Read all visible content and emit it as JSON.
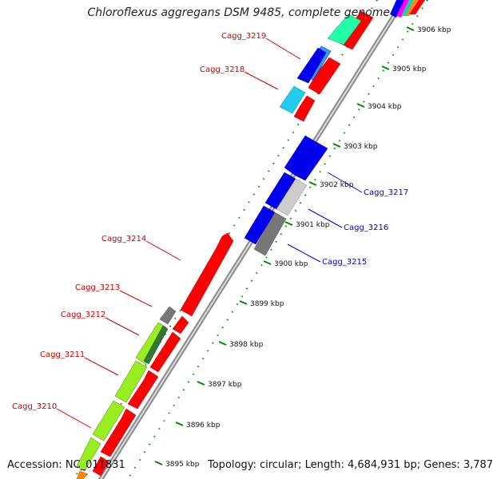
{
  "title": "Chloroflexus aggregans DSM 9485, complete genome",
  "accession": "Accession: NC_011831",
  "topology": "Topology: circular; Length: 4,684,931 bp; Genes: 3,787",
  "kbp_labels": [
    "3906 kbp",
    "3905 kbp",
    "3904 kbp",
    "3903 kbp",
    "3902 kbp",
    "3901 kbp",
    "3900 kbp",
    "3899 kbp",
    "3898 kbp",
    "3897 kbp",
    "3896 kbp",
    "3895 kbp"
  ],
  "gene_labels_left": [
    "Cagg_3219",
    "Cagg_3218",
    "Cagg_3214",
    "Cagg_3213",
    "Cagg_3212",
    "Cagg_3211",
    "Cagg_3210"
  ],
  "gene_labels_right": [
    "Cagg_3217",
    "Cagg_3216",
    "Cagg_3215"
  ],
  "colors": {
    "forward": "#ff0000",
    "reverse_blue": "#0000ee",
    "reverse_lime": "#99ee22",
    "reverse_cyan": "#22ccee",
    "reverse_teal": "#22ffaa",
    "gray": "#777777",
    "lightgray": "#cccccc",
    "backbone": "#999999",
    "tick": "#008800"
  }
}
